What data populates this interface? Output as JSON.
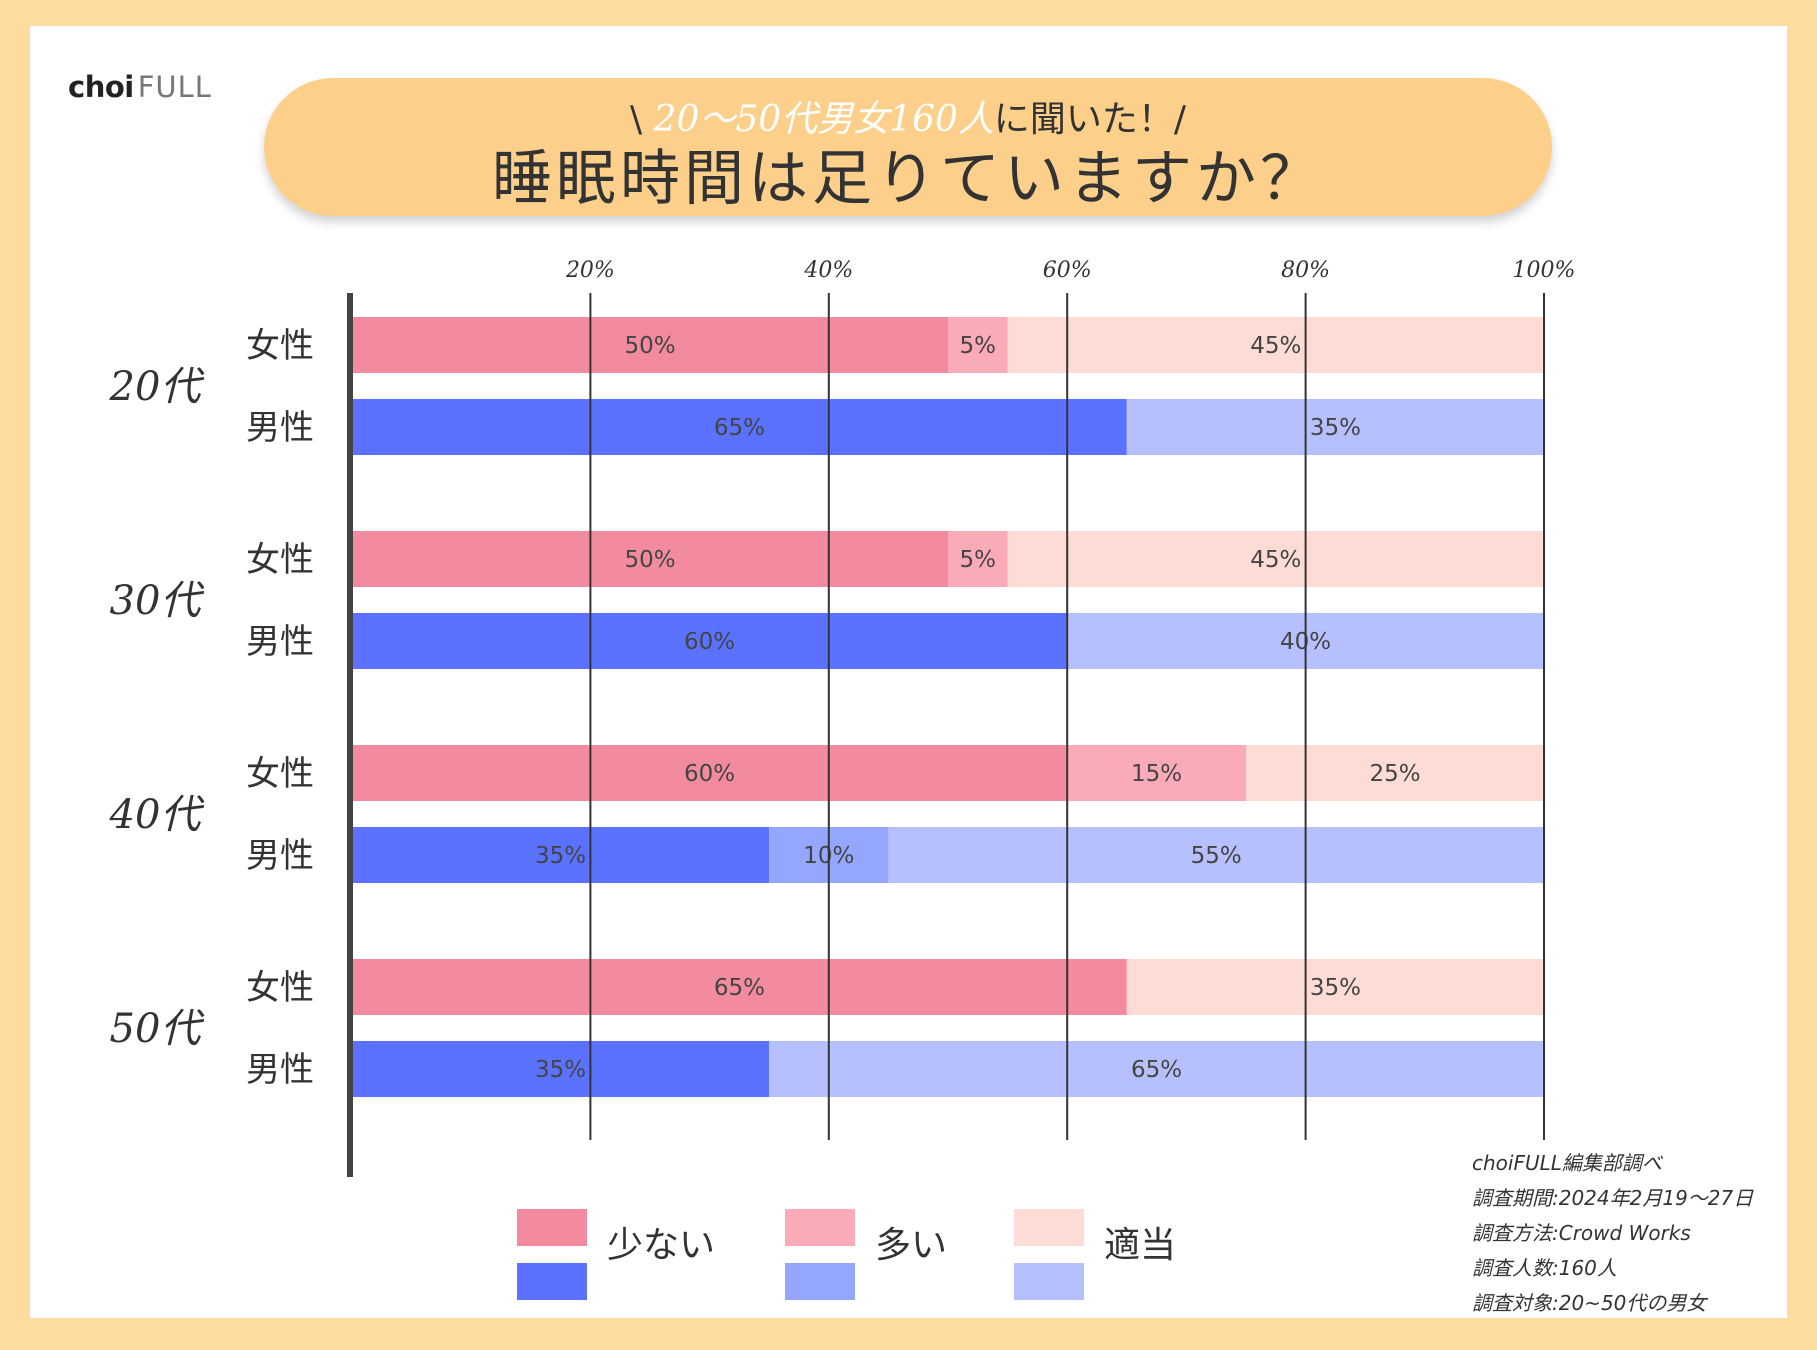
{
  "logo": {
    "main": "choi",
    "accent": "FULL"
  },
  "banner": {
    "subtitle_prefix": "\\",
    "subtitle_accent": "20〜50代男女160人",
    "subtitle_suffix": "に聞いた！/",
    "title": "睡眠時間は足りていますか？"
  },
  "colors": {
    "female": [
      "#f38b9f",
      "#fbaab8",
      "#fddcd5"
    ],
    "male": [
      "#5a72ff",
      "#95a6ff",
      "#b7c0fe"
    ],
    "axis": "#444444",
    "grid": "#333333"
  },
  "chart_data": {
    "type": "bar",
    "orientation": "horizontal",
    "stacked": true,
    "title": "睡眠時間は足りていますか？",
    "xlim": [
      0,
      100
    ],
    "ticks": [
      20,
      40,
      60,
      80,
      100
    ],
    "tick_labels": [
      "20%",
      "40%",
      "60%",
      "80%",
      "100%"
    ],
    "legend": [
      "少ない",
      "多い",
      "適当"
    ],
    "groups": [
      {
        "age": "20代",
        "rows": [
          {
            "gender": "女性",
            "kind": "female",
            "values": [
              50,
              5,
              45
            ],
            "labels": [
              "50%",
              "5%",
              "45%"
            ]
          },
          {
            "gender": "男性",
            "kind": "male",
            "values": [
              65,
              0,
              35
            ],
            "labels": [
              "65%",
              "",
              "35%"
            ]
          }
        ]
      },
      {
        "age": "30代",
        "rows": [
          {
            "gender": "女性",
            "kind": "female",
            "values": [
              50,
              5,
              45
            ],
            "labels": [
              "50%",
              "5%",
              "45%"
            ]
          },
          {
            "gender": "男性",
            "kind": "male",
            "values": [
              60,
              0,
              40
            ],
            "labels": [
              "60%",
              "",
              "40%"
            ]
          }
        ]
      },
      {
        "age": "40代",
        "rows": [
          {
            "gender": "女性",
            "kind": "female",
            "values": [
              60,
              15,
              25
            ],
            "labels": [
              "60%",
              "15%",
              "25%"
            ]
          },
          {
            "gender": "男性",
            "kind": "male",
            "values": [
              35,
              10,
              55
            ],
            "labels": [
              "35%",
              "10%",
              "55%"
            ]
          }
        ]
      },
      {
        "age": "50代",
        "rows": [
          {
            "gender": "女性",
            "kind": "female",
            "values": [
              65,
              0,
              35
            ],
            "labels": [
              "65%",
              "",
              "35%"
            ]
          },
          {
            "gender": "男性",
            "kind": "male",
            "values": [
              35,
              0,
              65
            ],
            "labels": [
              "35%",
              "",
              "65%"
            ]
          }
        ]
      }
    ]
  },
  "source": {
    "line1": "choiFULL編集部調べ",
    "line2": "調査期間:2024年2月19〜27日",
    "line3": "調査方法:Crowd Works",
    "line4": "調査人数:160人",
    "line5": "調査対象:20~50代の男女"
  }
}
